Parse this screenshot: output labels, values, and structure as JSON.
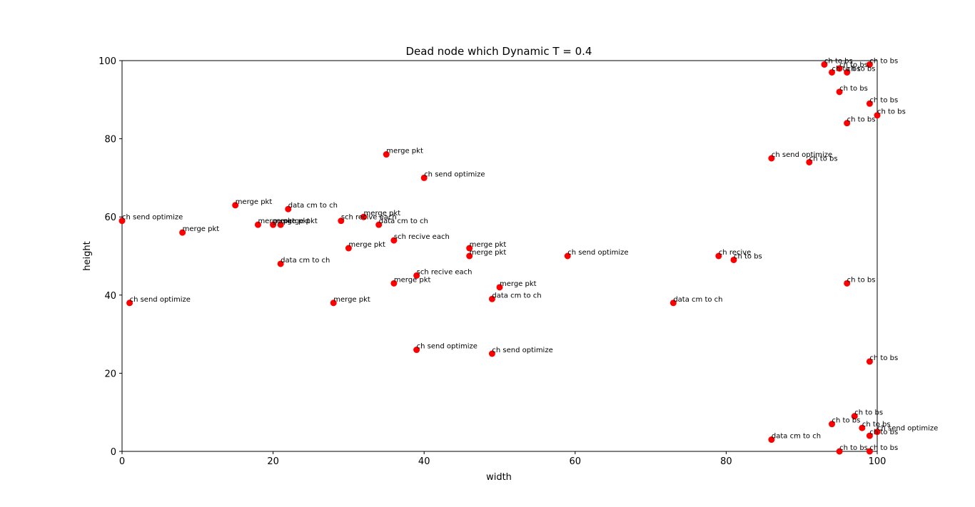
{
  "chart_data": {
    "type": "scatter",
    "title": "Dead node which Dynamic T = 0.4",
    "xlabel": "width",
    "ylabel": "height",
    "xlim": [
      0,
      100
    ],
    "ylim": [
      0,
      100
    ],
    "xticks": [
      "0",
      "20",
      "40",
      "60",
      "80",
      "100"
    ],
    "yticks": [
      "0",
      "20",
      "40",
      "60",
      "80",
      "100"
    ],
    "grid": false,
    "marker_color": "#ff0000",
    "points": [
      {
        "x": 0,
        "y": 59,
        "label": "ch send optimize"
      },
      {
        "x": 1,
        "y": 38,
        "label": "ch send optimize"
      },
      {
        "x": 8,
        "y": 56,
        "label": "merge pkt"
      },
      {
        "x": 15,
        "y": 63,
        "label": "merge pkt"
      },
      {
        "x": 18,
        "y": 58,
        "label": "merge pkt"
      },
      {
        "x": 20,
        "y": 58,
        "label": "merge pkt"
      },
      {
        "x": 21,
        "y": 58,
        "label": "merge pkt"
      },
      {
        "x": 21,
        "y": 48,
        "label": "data cm to ch"
      },
      {
        "x": 22,
        "y": 62,
        "label": "data cm to ch"
      },
      {
        "x": 28,
        "y": 38,
        "label": "merge pkt"
      },
      {
        "x": 29,
        "y": 59,
        "label": "sch recive each"
      },
      {
        "x": 30,
        "y": 52,
        "label": "merge pkt"
      },
      {
        "x": 32,
        "y": 60,
        "label": "merge pkt"
      },
      {
        "x": 34,
        "y": 58,
        "label": "data cm to ch"
      },
      {
        "x": 35,
        "y": 76,
        "label": "merge pkt"
      },
      {
        "x": 36,
        "y": 54,
        "label": "sch recive each"
      },
      {
        "x": 36,
        "y": 43,
        "label": "merge pkt"
      },
      {
        "x": 39,
        "y": 45,
        "label": "sch recive each"
      },
      {
        "x": 39,
        "y": 26,
        "label": "ch send optimize"
      },
      {
        "x": 40,
        "y": 70,
        "label": "ch send optimize"
      },
      {
        "x": 46,
        "y": 52,
        "label": "merge pkt"
      },
      {
        "x": 46,
        "y": 50,
        "label": "merge pkt"
      },
      {
        "x": 49,
        "y": 39,
        "label": "data cm to ch"
      },
      {
        "x": 49,
        "y": 25,
        "label": "ch send optimize"
      },
      {
        "x": 50,
        "y": 42,
        "label": "merge pkt"
      },
      {
        "x": 59,
        "y": 50,
        "label": "ch send optimize"
      },
      {
        "x": 73,
        "y": 38,
        "label": "data cm to ch"
      },
      {
        "x": 79,
        "y": 50,
        "label": "ch recive"
      },
      {
        "x": 81,
        "y": 49,
        "label": "ch to bs"
      },
      {
        "x": 86,
        "y": 75,
        "label": "ch send optimize"
      },
      {
        "x": 86,
        "y": 3,
        "label": "data cm to ch"
      },
      {
        "x": 91,
        "y": 74,
        "label": "ch to bs"
      },
      {
        "x": 93,
        "y": 99,
        "label": "ch to bs"
      },
      {
        "x": 94,
        "y": 97,
        "label": "ch to bs"
      },
      {
        "x": 94,
        "y": 7,
        "label": "ch to bs"
      },
      {
        "x": 95,
        "y": 98,
        "label": "ch to bs"
      },
      {
        "x": 95,
        "y": 92,
        "label": "ch to bs"
      },
      {
        "x": 95,
        "y": 0,
        "label": "ch to bs"
      },
      {
        "x": 96,
        "y": 97,
        "label": "ch to bs"
      },
      {
        "x": 96,
        "y": 84,
        "label": "ch to bs"
      },
      {
        "x": 96,
        "y": 43,
        "label": "ch to bs"
      },
      {
        "x": 97,
        "y": 9,
        "label": "ch to bs"
      },
      {
        "x": 98,
        "y": 6,
        "label": "ch to bs"
      },
      {
        "x": 99,
        "y": 99,
        "label": "ch to bs"
      },
      {
        "x": 99,
        "y": 89,
        "label": "ch to bs"
      },
      {
        "x": 99,
        "y": 23,
        "label": "ch to bs"
      },
      {
        "x": 99,
        "y": 4,
        "label": "ch to bs"
      },
      {
        "x": 99,
        "y": 0,
        "label": "ch to bs"
      },
      {
        "x": 100,
        "y": 86,
        "label": "ch to bs"
      },
      {
        "x": 100,
        "y": 5,
        "label": "ch send optimize"
      }
    ]
  }
}
